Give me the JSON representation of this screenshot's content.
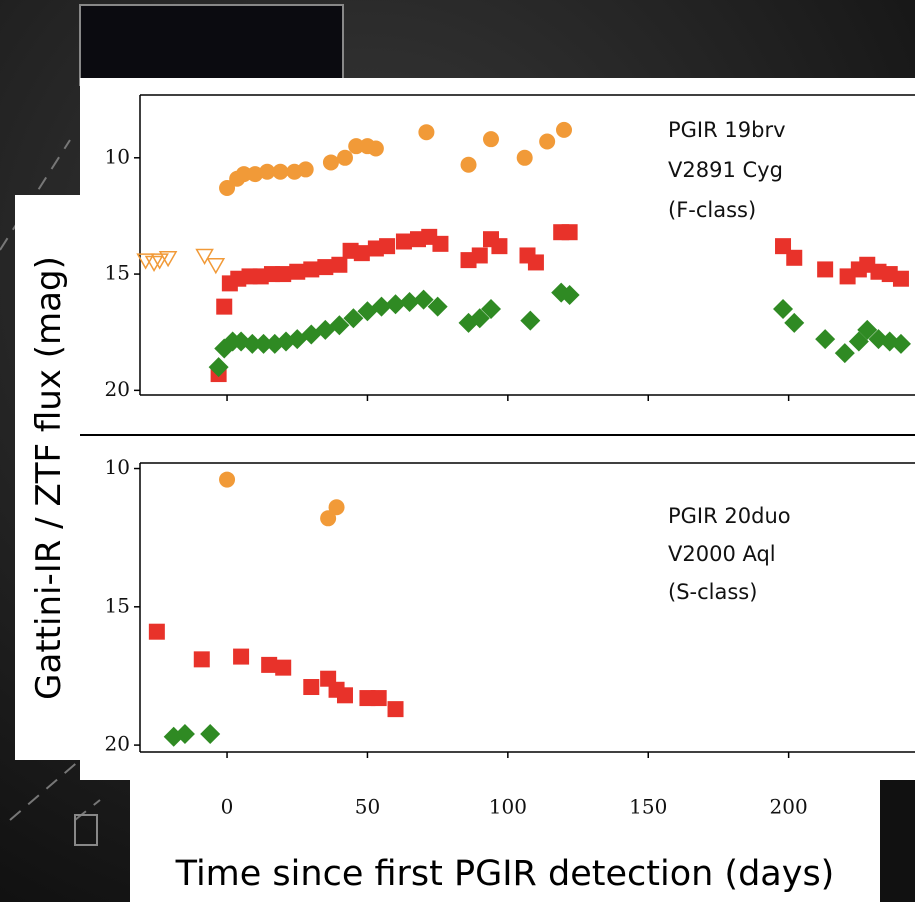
{
  "shared": {
    "ylabel": "Gattini-IR / ZTF flux (mag)",
    "xlabel": "Time since first PGIR detection (days)"
  },
  "chart_data": [
    {
      "type": "scatter",
      "annotation": [
        "PGIR 19brv",
        "V2891 Cyg",
        "(F-class)"
      ],
      "xlim": [
        -31,
        245
      ],
      "xticks": [
        0,
        50,
        100,
        150,
        200
      ],
      "ylim": [
        20.2,
        7.3
      ],
      "yticks": [
        10,
        15,
        20
      ],
      "series": [
        {
          "color": "#f19a38",
          "marker": "circle",
          "x": [
            0,
            3.6,
            6,
            10,
            14.3,
            19,
            24,
            28,
            37,
            42,
            46,
            50,
            53,
            71,
            86,
            94,
            106,
            114,
            120
          ],
          "values": [
            11.3,
            10.9,
            10.7,
            10.7,
            10.6,
            10.6,
            10.6,
            10.5,
            10.2,
            10.0,
            9.5,
            9.5,
            9.6,
            8.9,
            10.3,
            9.2,
            10.0,
            9.3,
            8.8
          ]
        },
        {
          "color": "#f19a38",
          "marker": "triangle-down",
          "x": [
            -29,
            -26,
            -24,
            -21,
            -8,
            -4
          ],
          "values": [
            14.4,
            14.5,
            14.4,
            14.3,
            14.2,
            14.6
          ]
        },
        {
          "color": "#e8322a",
          "marker": "square",
          "x": [
            -3,
            -1,
            1,
            4,
            8,
            12,
            16,
            20,
            25,
            30,
            35,
            40,
            44,
            48,
            53,
            57,
            63,
            68,
            72,
            76,
            86,
            90,
            94,
            97,
            107,
            110,
            119,
            122,
            198,
            202,
            213,
            221,
            225,
            228,
            232,
            236,
            240
          ],
          "values": [
            19.3,
            16.4,
            15.4,
            15.2,
            15.1,
            15.1,
            15.0,
            15.0,
            14.9,
            14.8,
            14.7,
            14.6,
            14.0,
            14.1,
            13.9,
            13.8,
            13.6,
            13.5,
            13.4,
            13.7,
            14.4,
            14.2,
            13.5,
            13.8,
            14.2,
            14.5,
            13.2,
            13.2,
            13.8,
            14.3,
            14.8,
            15.1,
            14.8,
            14.6,
            14.9,
            15.0,
            15.2
          ]
        },
        {
          "color": "#2f8a23",
          "marker": "diamond",
          "x": [
            -3,
            -1,
            2,
            5,
            9,
            13,
            17,
            21,
            25,
            30,
            35,
            40,
            45,
            50,
            55,
            60,
            65,
            70,
            75,
            86,
            90,
            94,
            108,
            119,
            122,
            198,
            202,
            213,
            220,
            225,
            228,
            232,
            236,
            240
          ],
          "values": [
            19.0,
            18.2,
            17.9,
            17.9,
            18.0,
            18.0,
            18.0,
            17.9,
            17.8,
            17.6,
            17.4,
            17.2,
            16.9,
            16.6,
            16.4,
            16.3,
            16.2,
            16.1,
            16.4,
            17.1,
            16.9,
            16.5,
            17.0,
            15.8,
            15.9,
            16.5,
            17.1,
            17.8,
            18.4,
            17.9,
            17.4,
            17.8,
            17.9,
            18.0
          ]
        }
      ]
    },
    {
      "type": "scatter",
      "annotation": [
        "PGIR 20duo",
        "V2000 Aql",
        "(S-class)"
      ],
      "xlim": [
        -31,
        245
      ],
      "xticks": [
        0,
        50,
        100,
        150,
        200
      ],
      "ylim": [
        20.25,
        9.8
      ],
      "yticks": [
        10,
        15,
        20
      ],
      "series": [
        {
          "color": "#f19a38",
          "marker": "circle",
          "x": [
            0,
            36,
            39
          ],
          "values": [
            10.4,
            11.8,
            11.4
          ]
        },
        {
          "color": "#e8322a",
          "marker": "square",
          "x": [
            -25,
            -9,
            5,
            15,
            20,
            30,
            36,
            39,
            42,
            50,
            54,
            60
          ],
          "values": [
            15.9,
            16.9,
            16.8,
            17.1,
            17.2,
            17.9,
            17.6,
            18.0,
            18.2,
            18.3,
            18.3,
            18.7
          ]
        },
        {
          "color": "#2f8a23",
          "marker": "diamond",
          "x": [
            -19,
            -15,
            -6
          ],
          "values": [
            19.7,
            19.6,
            19.6
          ]
        }
      ]
    }
  ]
}
